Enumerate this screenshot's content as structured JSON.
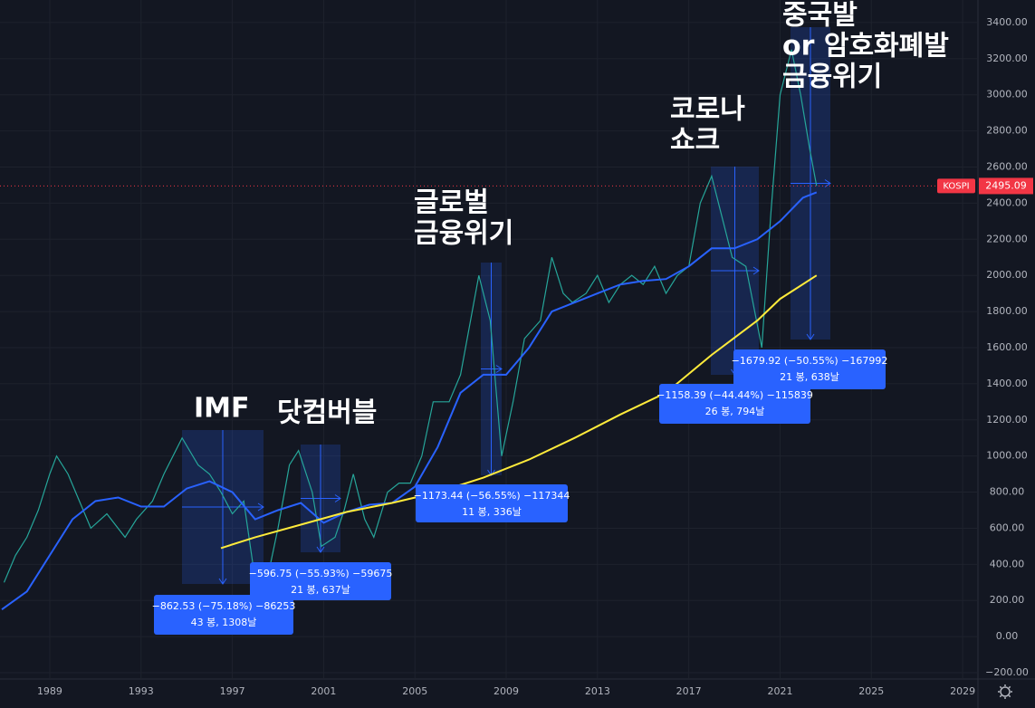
{
  "chart_data": {
    "type": "line",
    "xlim": [
      1986.82,
      2029.67
    ],
    "xticks": [
      1989,
      1993,
      1997,
      2001,
      2005,
      2009,
      2013,
      2017,
      2021,
      2025,
      2029
    ],
    "ylim": [
      -235,
      3525
    ],
    "yticks": [
      {
        "value": -200,
        "label": "−200.00"
      },
      {
        "value": 0,
        "label": "0.00"
      },
      {
        "value": 200,
        "label": "200.00"
      },
      {
        "value": 400,
        "label": "400.00"
      },
      {
        "value": 600,
        "label": "600.00"
      },
      {
        "value": 800,
        "label": "800.00"
      },
      {
        "value": 1000,
        "label": "1000.00"
      },
      {
        "value": 1200,
        "label": "1200.00"
      },
      {
        "value": 1400,
        "label": "1400.00"
      },
      {
        "value": 1600,
        "label": "1600.00"
      },
      {
        "value": 1800,
        "label": "1800.00"
      },
      {
        "value": 2000,
        "label": "2000.00"
      },
      {
        "value": 2200,
        "label": "2200.00"
      },
      {
        "value": 2400,
        "label": "2400.00"
      },
      {
        "value": 2600,
        "label": "2600.00"
      },
      {
        "value": 2800,
        "label": "2800.00"
      },
      {
        "value": 3000,
        "label": "3000.00"
      },
      {
        "value": 3200,
        "label": "3200.00"
      },
      {
        "value": 3400,
        "label": "3400.00"
      }
    ],
    "grid": true,
    "series": [
      {
        "color": "#26a69a",
        "x": [
          1987.0,
          1987.5,
          1988.0,
          1988.5,
          1989.0,
          1989.3,
          1989.8,
          1990.3,
          1990.8,
          1991.5,
          1992.3,
          1992.8,
          1993.5,
          1994.0,
          1994.8,
          1995.5,
          1996.0,
          1996.5,
          1997.0,
          1997.5,
          1997.9,
          1998.5,
          1999.0,
          1999.5,
          1999.9,
          2000.5,
          2000.9,
          2001.5,
          2001.9,
          2002.3,
          2002.8,
          2003.2,
          2003.8,
          2004.3,
          2004.8,
          2005.3,
          2005.8,
          2006.5,
          2007.0,
          2007.8,
          2008.3,
          2008.8,
          2009.3,
          2009.8,
          2010.5,
          2011.0,
          2011.5,
          2011.9,
          2012.5,
          2013.0,
          2013.5,
          2014.0,
          2014.5,
          2015.0,
          2015.5,
          2016.0,
          2016.5,
          2017.0,
          2017.5,
          2018.0,
          2018.5,
          2018.9,
          2019.5,
          2020.2,
          2020.6,
          2021.0,
          2021.5,
          2021.9,
          2022.3,
          2022.6
        ],
        "values": [
          300,
          450,
          550,
          700,
          900,
          1000,
          900,
          750,
          600,
          680,
          550,
          650,
          750,
          900,
          1100,
          950,
          900,
          800,
          680,
          750,
          400,
          300,
          600,
          950,
          1030,
          800,
          500,
          550,
          700,
          900,
          650,
          550,
          800,
          850,
          850,
          1000,
          1300,
          1300,
          1450,
          2000,
          1750,
          1000,
          1300,
          1650,
          1750,
          2100,
          1900,
          1850,
          1900,
          2000,
          1850,
          1950,
          2000,
          1950,
          2050,
          1900,
          2000,
          2050,
          2400,
          2550,
          2300,
          2100,
          2050,
          1600,
          2350,
          3000,
          3250,
          3000,
          2700,
          2495.09
        ]
      },
      {
        "color": "#2962ff",
        "x": [
          1986.9,
          1988,
          1989,
          1990,
          1991,
          1992,
          1993,
          1994,
          1995,
          1996,
          1997,
          1998,
          1999,
          2000,
          2001,
          2002,
          2003,
          2004,
          2005,
          2006,
          2007,
          2008,
          2009,
          2010,
          2011,
          2012,
          2013,
          2014,
          2015,
          2016,
          2017,
          2018,
          2019,
          2020,
          2021,
          2022,
          2022.6
        ],
        "values": [
          150,
          250,
          450,
          650,
          750,
          770,
          720,
          720,
          820,
          860,
          800,
          650,
          700,
          740,
          630,
          690,
          730,
          740,
          830,
          1050,
          1350,
          1450,
          1450,
          1600,
          1800,
          1850,
          1900,
          1950,
          1970,
          1980,
          2050,
          2150,
          2150,
          2200,
          2300,
          2430,
          2460
        ]
      },
      {
        "color": "#ffeb3b",
        "x": [
          1996.5,
          1998,
          2000,
          2002,
          2004,
          2006,
          2008,
          2010,
          2012,
          2014,
          2016,
          2018,
          2020,
          2021,
          2022.6
        ],
        "values": [
          490,
          550,
          620,
          690,
          740,
          800,
          880,
          980,
          1100,
          1230,
          1350,
          1560,
          1750,
          1870,
          2000
        ]
      }
    ],
    "price_label": "KOSPI",
    "last_price": 2495.09,
    "annotations": [
      {
        "title_lines": [
          "IMF"
        ],
        "measure": "−862.53 (−75.18%) −86253",
        "bars": "43 봉, 1308날"
      },
      {
        "title_lines": [
          "닷컴버블"
        ],
        "measure": "−596.75 (−55.93%) −59675",
        "bars": "21 봉, 637날"
      },
      {
        "title_lines": [
          "글로벌",
          "금융위기"
        ],
        "measure": "−1173.44 (−56.55%) −117344",
        "bars": "11 봉, 336날"
      },
      {
        "title_lines": [
          "코로나",
          "쇼크"
        ],
        "measure": "−1158.39 (−44.44%) −115839",
        "bars": "26 봉, 794날"
      },
      {
        "title_lines": [
          "중국발",
          "or 암호화폐발",
          "금융위기"
        ],
        "measure": "−1679.92 (−50.55%) −167992",
        "bars": "21 봉, 638날"
      }
    ]
  }
}
